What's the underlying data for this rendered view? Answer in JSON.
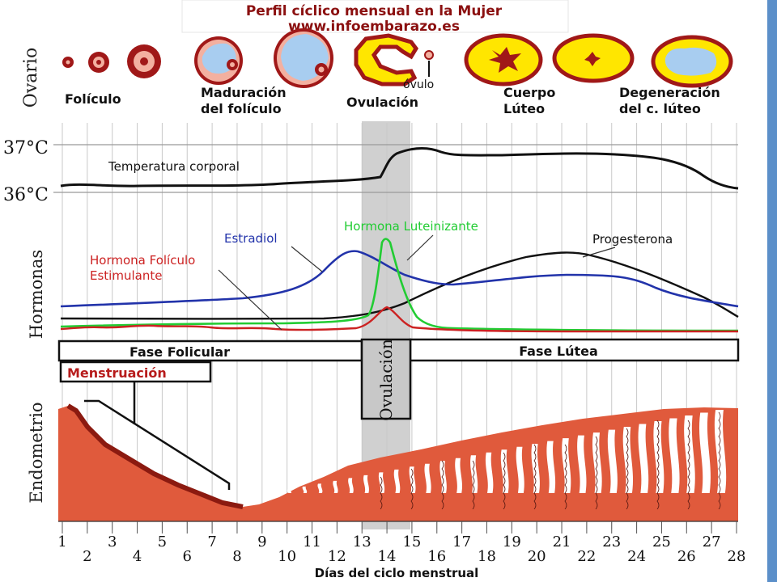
{
  "header": {
    "title": "Perfil cíclico mensual en la Mujer",
    "website": "www.infoembarazo.es"
  },
  "section_labels": {
    "ovary": "Ovario",
    "hormones": "Hormonas",
    "endometrium": "Endometrio"
  },
  "ovary_stages": {
    "follicle": "Folículo",
    "maturation_line1": "Maduración",
    "maturation_line2": "del folículo",
    "ovum": "óvulo",
    "ovulation": "Ovulación",
    "corpus_line1": "Cuerpo",
    "corpus_line2": "Lúteo",
    "degeneration_line1": "Degeneración",
    "degeneration_line2": "del c. lúteo"
  },
  "temperature": {
    "high_label": "37°C",
    "low_label": "36°C",
    "curve_label": "Temperatura corporal"
  },
  "hormones": {
    "estradiol": "Estradiol",
    "lh": "Hormona Luteinizante",
    "progesterone": "Progesterona",
    "fsh_line1": "Hormona Folículo",
    "fsh_line2": "Estimulante"
  },
  "phases": {
    "follicular": "Fase Folicular",
    "ovulation": "Ovulación",
    "luteal": "Fase Lútea",
    "menstruation": "Menstruación"
  },
  "axis": {
    "days": [
      "1",
      "2",
      "3",
      "4",
      "5",
      "6",
      "7",
      "8",
      "9",
      "10",
      "11",
      "12",
      "13",
      "14",
      "15",
      "16",
      "17",
      "18",
      "19",
      "20",
      "21",
      "22",
      "23",
      "24",
      "25",
      "26",
      "27",
      "28"
    ],
    "label": "Días del ciclo menstrual"
  },
  "colors": {
    "estradiol": "#2233aa",
    "lh": "#22cc33",
    "fsh": "#cc2222",
    "progesterone": "#111111",
    "endometrium": "#e05a3c",
    "follicle_fluid": "#a8cdf0",
    "corpus": "#ffe600",
    "ovary_tissue": "#a01818",
    "ovulation_band": "#c8c8c8",
    "side_bar": "#5b8fc9"
  }
}
